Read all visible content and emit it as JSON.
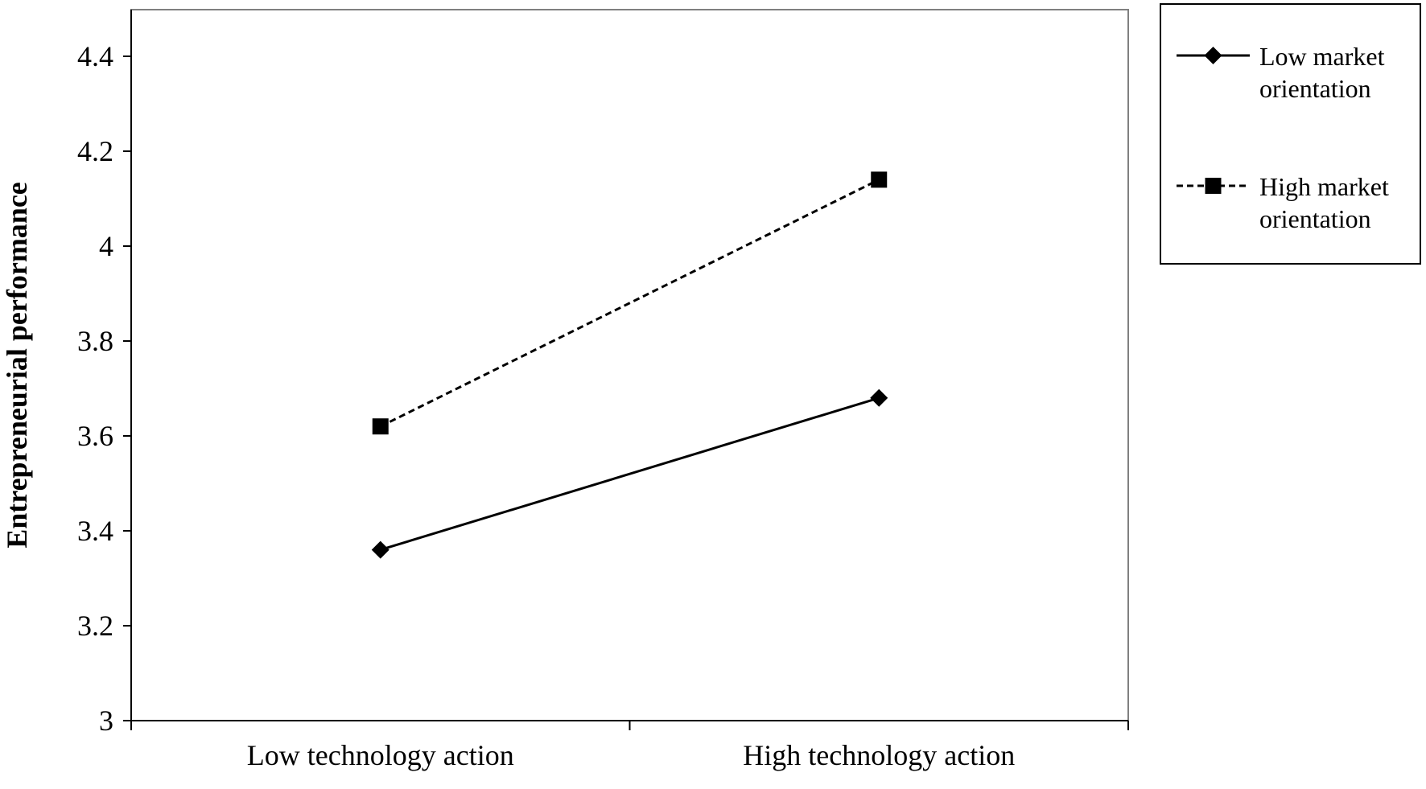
{
  "chart_data": {
    "type": "line",
    "title": "",
    "xlabel": "",
    "ylabel": "Entrepreneurial performance",
    "categories": [
      "Low technology action",
      "High technology action"
    ],
    "ylim": [
      3,
      4.4
    ],
    "yticks": [
      "3",
      "3.2",
      "3.4",
      "3.6",
      "3.8",
      "4",
      "4.2",
      "4.4"
    ],
    "grid": false,
    "legend_position": "right",
    "series": [
      {
        "name_lines": [
          "Low market",
          "orientation"
        ],
        "values": [
          3.36,
          3.68
        ],
        "marker": "diamond",
        "line_style": "solid",
        "color": "#000000"
      },
      {
        "name_lines": [
          "High market",
          "orientation"
        ],
        "values": [
          3.62,
          4.14
        ],
        "marker": "square",
        "line_style": "dashed",
        "color": "#000000"
      }
    ]
  }
}
